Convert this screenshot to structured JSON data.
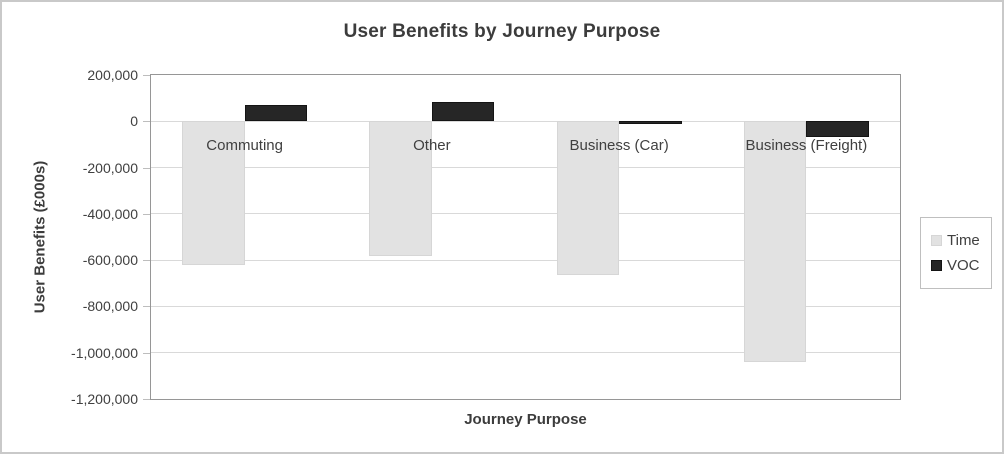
{
  "chart_data": {
    "type": "bar",
    "title": "User Benefits by Journey Purpose",
    "xlabel": "Journey Purpose",
    "ylabel": "User Benefits (£000s)",
    "categories": [
      "Commuting",
      "Other",
      "Business (Car)",
      "Business (Freight)"
    ],
    "series": [
      {
        "name": "Time",
        "color": "#e2e2e2",
        "border_color": "#d6d6d6",
        "values": [
          -620000,
          -580000,
          -665000,
          -1040000
        ]
      },
      {
        "name": "VOC",
        "color": "#262626",
        "border_color": "#141414",
        "values": [
          70000,
          83000,
          -10000,
          -70000
        ]
      }
    ],
    "ylim": [
      -1200000,
      200000
    ],
    "ytick_step": 200000,
    "yticks": [
      {
        "value": 200000,
        "label": "200,000"
      },
      {
        "value": 0,
        "label": "0"
      },
      {
        "value": -200000,
        "label": "-200,000"
      },
      {
        "value": -400000,
        "label": "-400,000"
      },
      {
        "value": -600000,
        "label": "-600,000"
      },
      {
        "value": -800000,
        "label": "-800,000"
      },
      {
        "value": -1000000,
        "label": "-1,000,000"
      },
      {
        "value": -1200000,
        "label": "-1,200,000"
      }
    ],
    "grid": true,
    "legend_position": "right",
    "legend_entries": [
      "Time",
      "VOC"
    ],
    "plot_border_color": "#969696",
    "gridline_color": "#d9d9d9"
  }
}
